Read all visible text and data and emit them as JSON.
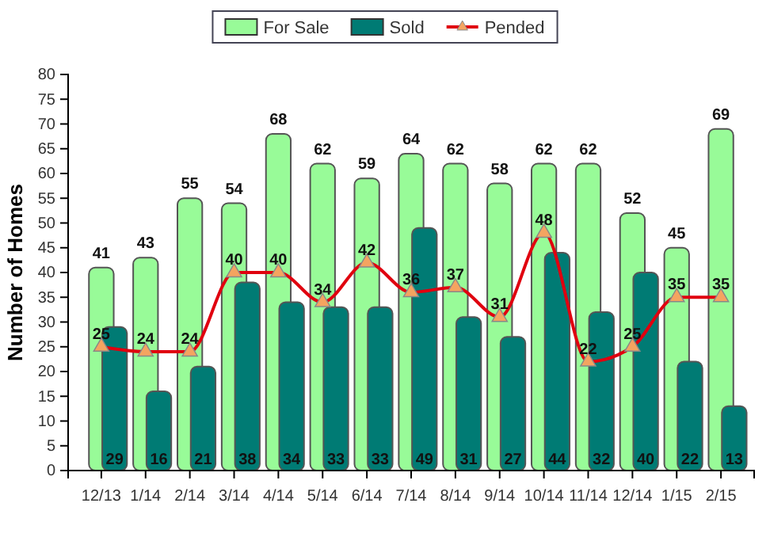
{
  "chart_data": {
    "type": "bar",
    "ylabel": "Number of Homes",
    "categories": [
      "12/13",
      "1/14",
      "2/14",
      "3/14",
      "4/14",
      "5/14",
      "6/14",
      "7/14",
      "8/14",
      "9/14",
      "10/14",
      "11/14",
      "12/14",
      "1/15",
      "2/15"
    ],
    "series": [
      {
        "name": "For Sale",
        "color": "#98fb98",
        "values": [
          41,
          43,
          55,
          54,
          68,
          62,
          59,
          64,
          62,
          58,
          62,
          62,
          52,
          45,
          69
        ]
      },
      {
        "name": "Sold",
        "color": "#007b74",
        "values": [
          29,
          16,
          21,
          38,
          34,
          33,
          33,
          49,
          31,
          27,
          44,
          32,
          40,
          22,
          13
        ]
      },
      {
        "name": "Pended",
        "type": "line",
        "color": "#e0000f",
        "marker": "triangle",
        "values": [
          25,
          24,
          24,
          40,
          40,
          34,
          42,
          36,
          37,
          31,
          48,
          22,
          25,
          35,
          35
        ]
      }
    ],
    "ylim": [
      0,
      80
    ],
    "yticks": [
      0,
      5,
      10,
      15,
      20,
      25,
      30,
      35,
      40,
      45,
      50,
      55,
      60,
      65,
      70,
      75,
      80
    ],
    "grid": false,
    "legend": "top",
    "data_labels": true
  }
}
